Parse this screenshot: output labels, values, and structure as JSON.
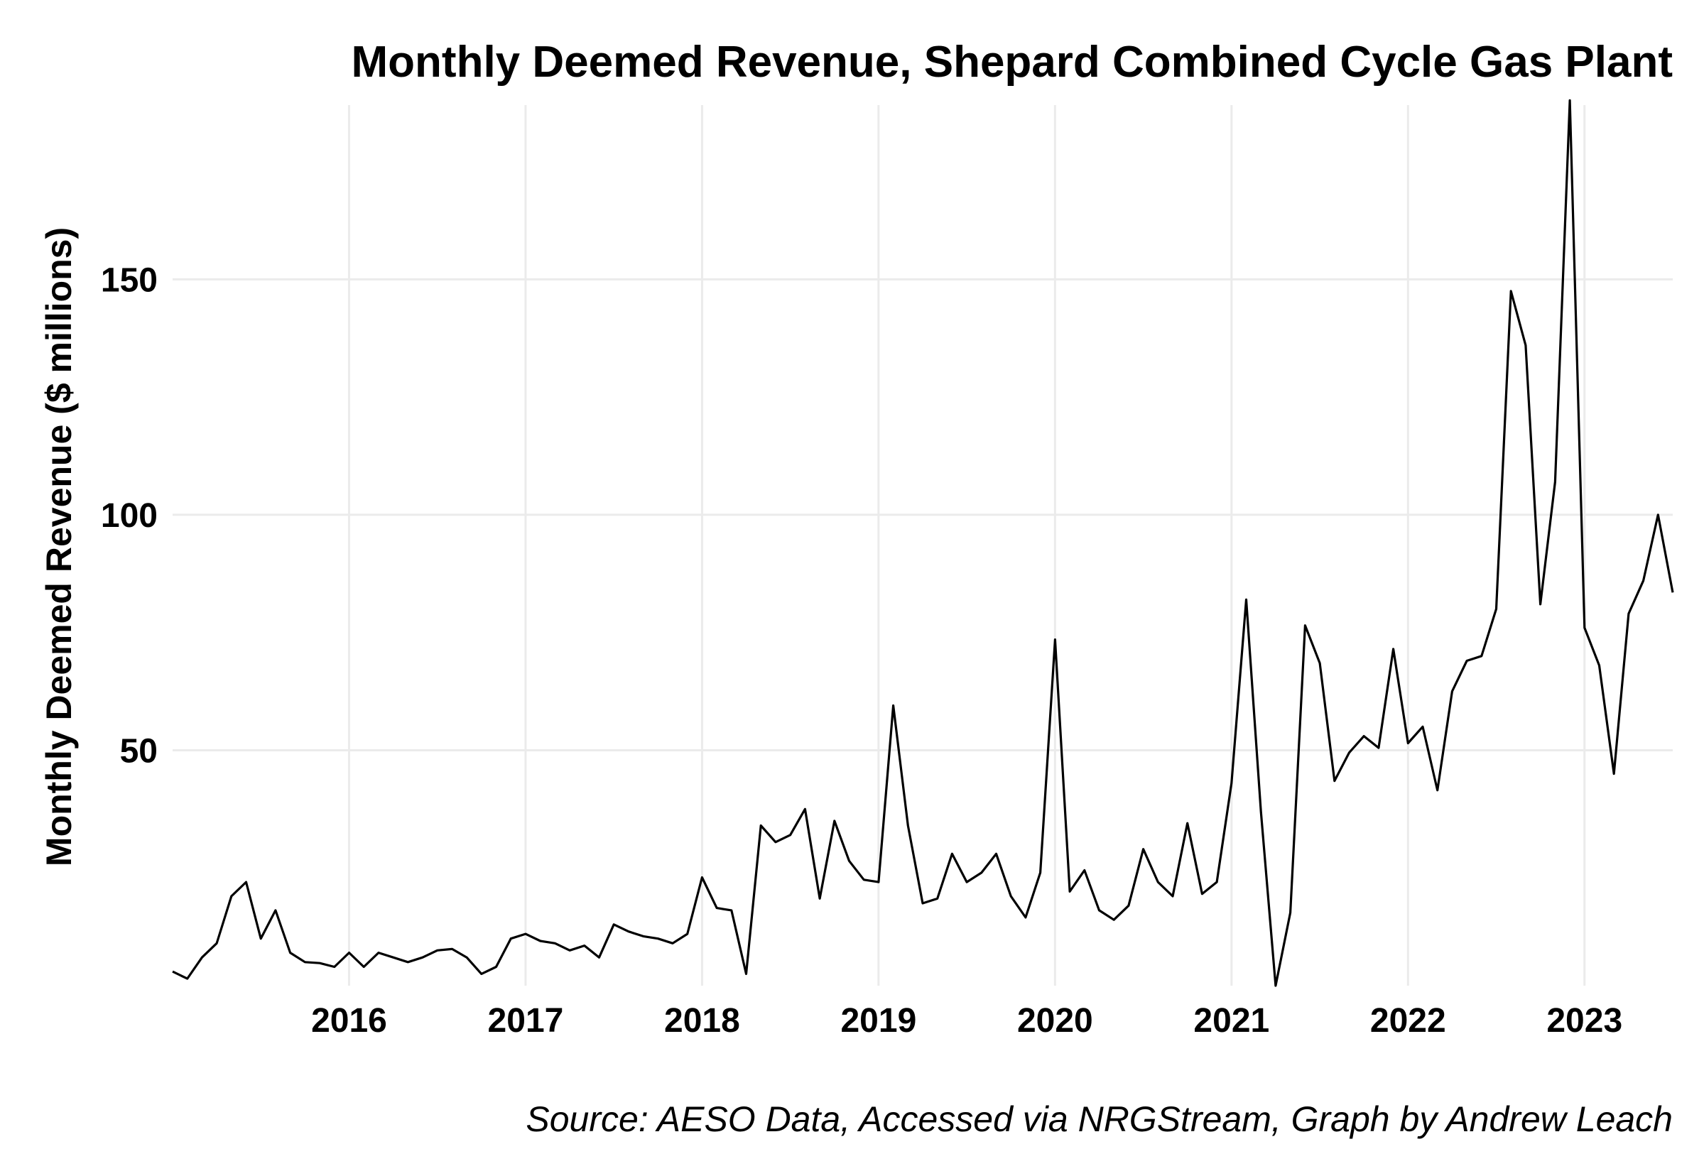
{
  "chart_data": {
    "type": "line",
    "title": "Monthly Deemed Revenue, Shepard Combined Cycle Gas Plant",
    "ylabel": "Monthly Deemed Revenue ($ millions)",
    "xlabel": "",
    "caption": "Source: AESO Data, Accessed via NRGStream, Graph by Andrew Leach",
    "x_ticks": [
      "2016",
      "2017",
      "2018",
      "2019",
      "2020",
      "2021",
      "2022",
      "2023"
    ],
    "y_ticks": [
      50,
      100,
      150
    ],
    "xlim": [
      "2015-01",
      "2023-07"
    ],
    "ylim": [
      0,
      187
    ],
    "grid": true,
    "legend": "none",
    "line_color": "#000000",
    "series": [
      {
        "x": [
          "2015-01",
          "2015-02",
          "2015-03",
          "2015-04",
          "2015-05",
          "2015-06",
          "2015-07",
          "2015-08",
          "2015-09",
          "2015-10",
          "2015-11",
          "2015-12",
          "2016-01",
          "2016-02",
          "2016-03",
          "2016-04",
          "2016-05",
          "2016-06",
          "2016-07",
          "2016-08",
          "2016-09",
          "2016-10",
          "2016-11",
          "2016-12",
          "2017-01",
          "2017-02",
          "2017-03",
          "2017-04",
          "2017-05",
          "2017-06",
          "2017-07",
          "2017-08",
          "2017-09",
          "2017-10",
          "2017-11",
          "2017-12",
          "2018-01",
          "2018-02",
          "2018-03",
          "2018-04",
          "2018-05",
          "2018-06",
          "2018-07",
          "2018-08",
          "2018-09",
          "2018-10",
          "2018-11",
          "2018-12",
          "2019-01",
          "2019-02",
          "2019-03",
          "2019-04",
          "2019-05",
          "2019-06",
          "2019-07",
          "2019-08",
          "2019-09",
          "2019-10",
          "2019-11",
          "2019-12",
          "2020-01",
          "2020-02",
          "2020-03",
          "2020-04",
          "2020-05",
          "2020-06",
          "2020-07",
          "2020-08",
          "2020-09",
          "2020-10",
          "2020-11",
          "2020-12",
          "2021-01",
          "2021-02",
          "2021-03",
          "2021-04",
          "2021-05",
          "2021-06",
          "2021-07",
          "2021-08",
          "2021-09",
          "2021-10",
          "2021-11",
          "2021-12",
          "2022-01",
          "2022-02",
          "2022-03",
          "2022-04",
          "2022-05",
          "2022-06",
          "2022-07",
          "2022-08",
          "2022-09",
          "2022-10",
          "2022-11",
          "2022-12",
          "2023-01",
          "2023-02",
          "2023-03",
          "2023-04",
          "2023-05",
          "2023-06",
          "2023-07"
        ],
        "values": [
          3,
          1.5,
          6,
          9,
          19,
          22,
          10,
          16,
          7,
          5,
          4.8,
          4,
          7,
          4,
          7,
          6,
          5,
          6,
          7.5,
          7.8,
          6,
          2.5,
          4,
          10,
          11,
          9.5,
          9,
          7.5,
          8.5,
          6,
          13,
          11.5,
          10.5,
          10,
          9,
          11,
          23,
          16.5,
          16,
          2.5,
          34,
          30.5,
          32,
          37.5,
          18.5,
          35,
          26.5,
          22.5,
          22,
          59.5,
          34,
          17.5,
          18.5,
          28,
          22,
          24,
          28,
          19,
          14.5,
          24,
          73.5,
          20,
          24.5,
          16,
          14,
          17,
          29,
          22,
          19,
          34.5,
          19.5,
          22,
          43,
          82,
          37,
          0,
          15.5,
          76.5,
          68.5,
          43.5,
          49.5,
          53,
          50.5,
          71.5,
          51.5,
          55,
          41.5,
          62.5,
          69,
          70,
          80,
          147.5,
          136,
          81,
          107,
          188,
          76,
          68,
          45,
          79,
          86,
          100,
          83.5
        ]
      }
    ]
  }
}
